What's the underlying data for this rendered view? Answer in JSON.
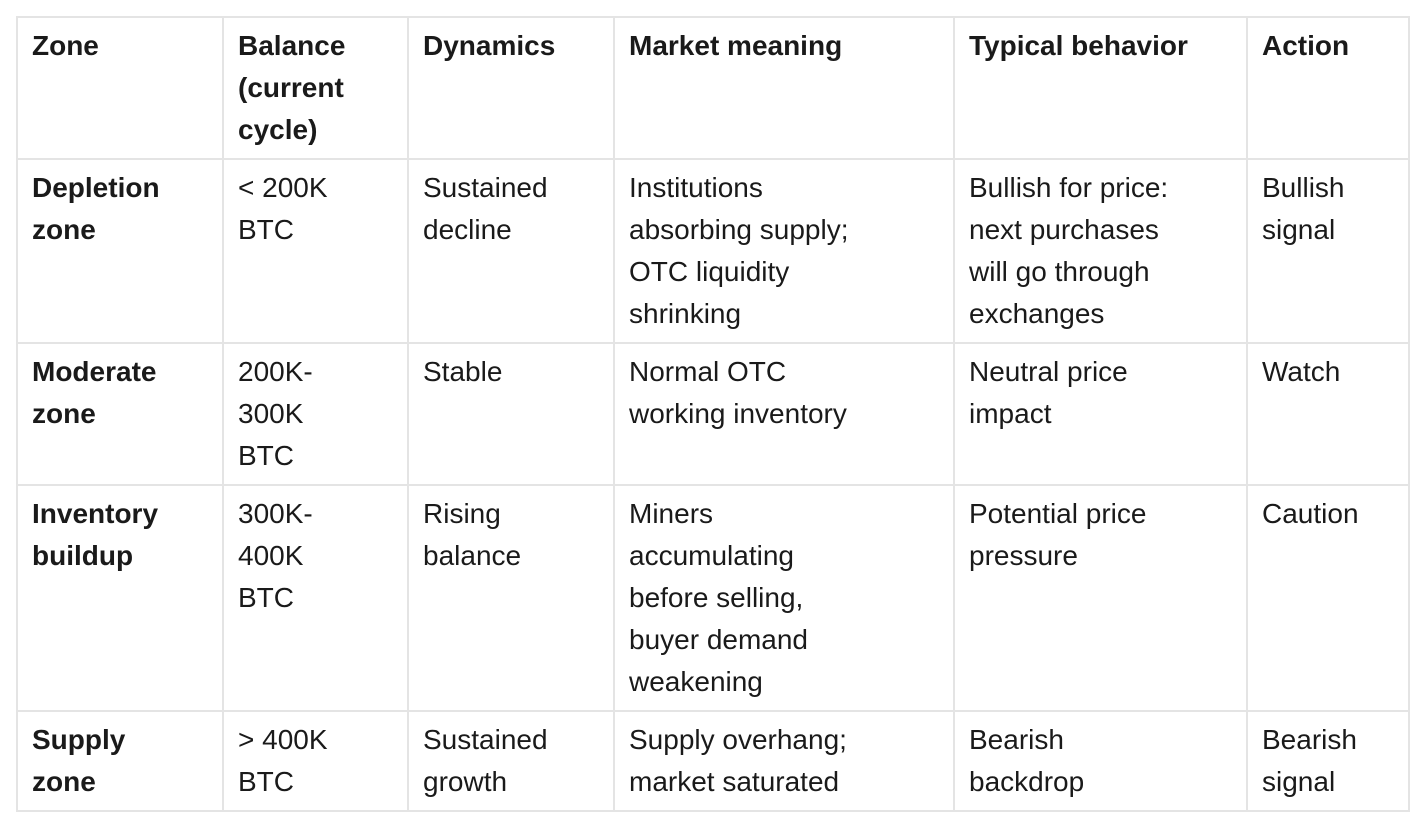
{
  "colors": {
    "background": "#ffffff",
    "text": "#1a1a1a",
    "border": "#e4e4e4"
  },
  "table": {
    "headers": {
      "zone": "Zone",
      "balance": "Balance\n(current\ncycle)",
      "dynamics": "Dynamics",
      "market_meaning": "Market meaning",
      "typical_behavior": "Typical behavior",
      "action": "Action"
    },
    "rows": [
      {
        "zone": "Depletion\nzone",
        "balance": "< 200K\nBTC",
        "dynamics": "Sustained\ndecline",
        "market_meaning": "Institutions\nabsorbing supply;\nOTC liquidity\nshrinking",
        "typical_behavior": "Bullish for price:\nnext purchases\nwill go through\nexchanges",
        "action": "Bullish\nsignal"
      },
      {
        "zone": "Moderate\nzone",
        "balance": "200K-\n300K\nBTC",
        "dynamics": "Stable",
        "market_meaning": "Normal OTC\nworking inventory",
        "typical_behavior": "Neutral price\nimpact",
        "action": "Watch"
      },
      {
        "zone": "Inventory\nbuildup",
        "balance": "300K-\n400K\nBTC",
        "dynamics": "Rising\nbalance",
        "market_meaning": "Miners\naccumulating\nbefore selling,\nbuyer demand\nweakening",
        "typical_behavior": "Potential price\npressure",
        "action": "Caution"
      },
      {
        "zone": "Supply\nzone",
        "balance": "> 400K\nBTC",
        "dynamics": "Sustained\ngrowth",
        "market_meaning": "Supply overhang;\nmarket saturated",
        "typical_behavior": "Bearish\nbackdrop",
        "action": "Bearish\nsignal"
      }
    ]
  }
}
